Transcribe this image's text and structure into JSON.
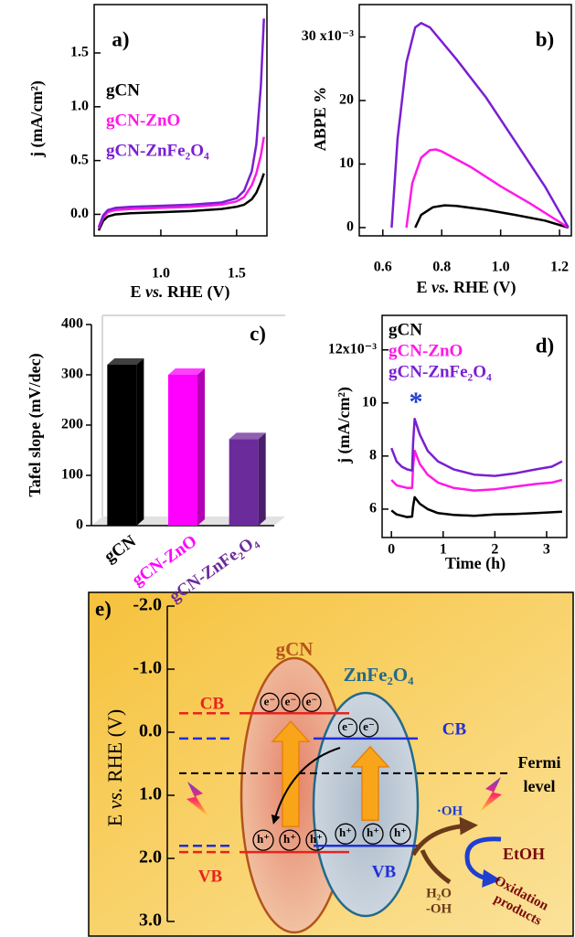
{
  "chart_data": [
    {
      "type": "line",
      "label": "a)",
      "xlabel": "E vs. RHE (V)",
      "ylabel": "j (mA/cm²)",
      "xlim": [
        0.56,
        1.7
      ],
      "ylim": [
        -0.2,
        1.95
      ],
      "xticks": [
        {
          "value": 1,
          "label": "1.0"
        },
        1.5
      ],
      "yticks": [
        {
          "value": 0,
          "label": "0.0"
        },
        0.5,
        {
          "value": 1,
          "label": "1.0"
        },
        1.5
      ],
      "legend": "upper left",
      "series": [
        {
          "name": "gCN",
          "color": "#000000",
          "x": [
            0.59,
            0.62,
            0.65,
            0.7,
            0.8,
            1.0,
            1.2,
            1.4,
            1.5,
            1.55,
            1.6,
            1.63,
            1.66,
            1.68
          ],
          "values": [
            -0.15,
            -0.06,
            -0.02,
            0,
            0.01,
            0.02,
            0.03,
            0.05,
            0.07,
            0.09,
            0.14,
            0.2,
            0.3,
            0.38
          ]
        },
        {
          "name": "gCN-ZnO",
          "color": "#ff19e6",
          "x": [
            0.59,
            0.62,
            0.65,
            0.7,
            0.8,
            1.0,
            1.2,
            1.4,
            1.5,
            1.55,
            1.6,
            1.63,
            1.66,
            1.68
          ],
          "values": [
            -0.13,
            -0.03,
            0.02,
            0.04,
            0.05,
            0.06,
            0.07,
            0.09,
            0.12,
            0.16,
            0.27,
            0.38,
            0.55,
            0.72
          ]
        },
        {
          "name": "gCN-ZnFe₂O₄",
          "color": "#7a1fd1",
          "x": [
            0.59,
            0.62,
            0.65,
            0.7,
            0.8,
            1.0,
            1.2,
            1.4,
            1.5,
            1.55,
            1.6,
            1.63,
            1.66,
            1.68
          ],
          "values": [
            -0.12,
            -0.01,
            0.04,
            0.06,
            0.07,
            0.08,
            0.09,
            0.11,
            0.15,
            0.22,
            0.4,
            0.65,
            1.2,
            1.82
          ]
        }
      ]
    },
    {
      "type": "line",
      "label": "b)",
      "xlabel": "E vs. RHE (V)",
      "ylabel": "ABPE %",
      "xlim": [
        0.52,
        1.24
      ],
      "ylim": [
        -1.3,
        35.1
      ],
      "xticks": [
        0.6,
        0.8,
        {
          "value": 1,
          "label": "1.0"
        },
        1.2
      ],
      "yticks": [
        0,
        10,
        20,
        {
          "value": 30,
          "label": "30 x10⁻³"
        }
      ],
      "series": [
        {
          "name": "gCN",
          "color": "#000000",
          "x": [
            0.71,
            0.73,
            0.77,
            0.81,
            0.85,
            0.95,
            1.05,
            1.15,
            1.23
          ],
          "values": [
            0,
            2,
            3.2,
            3.5,
            3.4,
            2.8,
            2,
            1.1,
            0
          ]
        },
        {
          "name": "gCN-ZnO",
          "color": "#ff19e6",
          "x": [
            0.68,
            0.7,
            0.73,
            0.76,
            0.78,
            0.8,
            0.9,
            1.0,
            1.1,
            1.23
          ],
          "values": [
            0,
            7,
            11,
            12.2,
            12.3,
            12,
            9.5,
            6.5,
            3.8,
            0
          ]
        },
        {
          "name": "gCN-ZnFe₂O₄",
          "color": "#7a1fd1",
          "x": [
            0.63,
            0.65,
            0.68,
            0.71,
            0.73,
            0.76,
            0.85,
            0.95,
            1.05,
            1.15,
            1.23
          ],
          "values": [
            0,
            14,
            26,
            31.5,
            32.2,
            31.5,
            26.5,
            20.5,
            13.5,
            6.5,
            0
          ]
        }
      ]
    },
    {
      "type": "bar",
      "label": "c)",
      "ylabel": "Tafel slope (mV/dec)",
      "categories": [
        "gCN",
        "gCN-ZnO",
        "gCN-ZnFe₂O₄"
      ],
      "values": [
        320,
        300,
        172
      ],
      "colors": [
        "#000000",
        "#ff00ff",
        "#6b2b9a"
      ],
      "ylim": [
        0,
        400
      ],
      "yticks": [
        0,
        100,
        200,
        300,
        400
      ]
    },
    {
      "type": "line",
      "label": "d)",
      "xlabel": "Time (h)",
      "ylabel": "j (mA/cm²)",
      "xlim": [
        -0.18,
        3.39
      ],
      "ylim": [
        4.93,
        13.3
      ],
      "xticks": [
        0,
        1,
        2,
        3
      ],
      "yticks": [
        6,
        8,
        10,
        {
          "value": 12,
          "label": "12x10⁻³"
        }
      ],
      "legend": "upper left",
      "annotation": "*",
      "annotation_color": "#1f3fd0",
      "series": [
        {
          "name": "gCN",
          "color": "#000000",
          "x": [
            0,
            0.1,
            0.2,
            0.3,
            0.4,
            0.42,
            0.45,
            0.55,
            0.7,
            0.9,
            1.2,
            1.6,
            2.0,
            2.4,
            2.8,
            3.1,
            3.3
          ],
          "values": [
            5.95,
            5.8,
            5.75,
            5.7,
            5.72,
            6.1,
            6.45,
            6.2,
            6.0,
            5.85,
            5.78,
            5.75,
            5.8,
            5.82,
            5.85,
            5.88,
            5.9
          ]
        },
        {
          "name": "gCN-ZnO",
          "color": "#ff19e6",
          "x": [
            0,
            0.1,
            0.2,
            0.3,
            0.4,
            0.42,
            0.45,
            0.55,
            0.7,
            0.9,
            1.2,
            1.6,
            2.0,
            2.4,
            2.8,
            3.1,
            3.3
          ],
          "values": [
            7.1,
            6.9,
            6.85,
            6.8,
            6.8,
            7.6,
            8.2,
            7.7,
            7.3,
            7.0,
            6.8,
            6.7,
            6.75,
            6.85,
            6.95,
            7.0,
            7.1
          ]
        },
        {
          "name": "gCN-ZnFe₂O₄",
          "color": "#7a1fd1",
          "x": [
            0,
            0.1,
            0.2,
            0.3,
            0.4,
            0.42,
            0.45,
            0.55,
            0.7,
            0.9,
            1.2,
            1.6,
            2.0,
            2.4,
            2.8,
            3.1,
            3.3
          ],
          "values": [
            8.3,
            7.8,
            7.6,
            7.5,
            7.45,
            8.5,
            9.4,
            8.8,
            8.2,
            7.8,
            7.5,
            7.3,
            7.25,
            7.35,
            7.5,
            7.6,
            7.8
          ]
        }
      ]
    }
  ],
  "diagram": {
    "label": "e)",
    "axis_label": "E vs. RHE (V)",
    "lim": [
      -2,
      3
    ],
    "ticks": [
      {
        "value": -2,
        "label": "-2.0"
      },
      {
        "value": -1,
        "label": "-1.0"
      },
      {
        "value": 0,
        "label": "0.0"
      },
      {
        "value": 1,
        "label": "1.0"
      },
      {
        "value": 2,
        "label": "2.0"
      },
      {
        "value": 3,
        "label": "3.0"
      }
    ],
    "materials": [
      {
        "name": "gCN",
        "cb": -0.3,
        "vb": 1.9,
        "cb_label": "CB",
        "vb_label": "VB",
        "color": "#e8231e",
        "electrons": [
          "e⁻",
          "e⁻",
          "e⁻"
        ],
        "holes": [
          "h⁺",
          "h⁺",
          "h⁺"
        ]
      },
      {
        "name": "ZnFe₂O₄",
        "cb": 0.1,
        "vb": 1.8,
        "cb_label": "CB",
        "vb_label": "VB",
        "color": "#1f2fd8",
        "electrons": [
          "e⁻",
          "e⁻"
        ],
        "holes": [
          "h⁺",
          "h⁺",
          "h⁺"
        ]
      }
    ],
    "fermi": {
      "value": 0.65,
      "label": [
        "Fermi",
        "level"
      ]
    },
    "species": {
      "radical": "·OH",
      "ethanol": "EtOH",
      "products": [
        "Oxidation",
        "products"
      ],
      "water": [
        "H₂O",
        "-OH"
      ]
    }
  }
}
